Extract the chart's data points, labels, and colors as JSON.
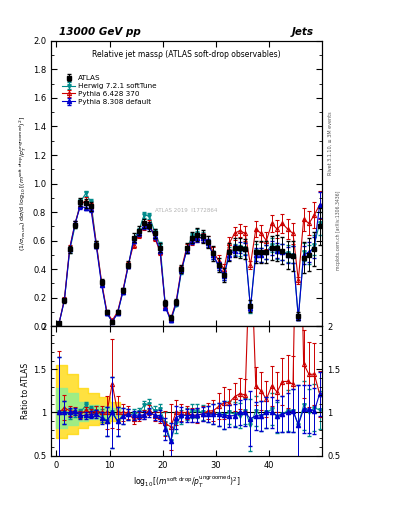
{
  "title_top": "13000 GeV pp",
  "title_right": "Jets",
  "plot_title": "Relative jet massρ (ATLAS soft-drop observables)",
  "watermark": "ATLAS 2019  I1772864",
  "rivet_label": "Rivet 3.1.10, ≥ 3M events",
  "arxiv_label": "mcplots.cern.ch [arXiv:1306.3436]",
  "ylabel_main": "(1/σₙₑˢᵤₘ) dσ/d log₁₀[(mˢᵒᶠᵗ ᵈʳᵒᵖ/pᵀᵘⁿᵏʳᵒᵒᵐᵉᵈ)^2]",
  "ylabel_ratio": "Ratio to ATLAS",
  "xlabel": "log₁₀[(mˢᵒᶠᵗ ᵈʳᵒᵖ/pᵀᵘⁿᵏʳᵒᵒᵐᵉᵈ)²]",
  "xmin": -1,
  "xmax": 50,
  "xticks": [
    0,
    10,
    20,
    30,
    40
  ],
  "ymin_main": 0.0,
  "ymax_main": 2.0,
  "yticks_main": [
    0,
    0.2,
    0.4,
    0.6,
    0.8,
    1.0,
    1.2,
    1.4,
    1.6,
    1.8,
    2.0
  ],
  "ymin_ratio": 0.5,
  "ymax_ratio": 2.0,
  "yticks_ratio": [
    0.5,
    1.0,
    1.5,
    2.0
  ],
  "colors": {
    "atlas": "#000000",
    "herwig": "#008B8B",
    "pythia6": "#CC0000",
    "pythia8": "#0000CC"
  },
  "x": [
    0.5,
    1.5,
    2.5,
    3.5,
    4.5,
    5.5,
    6.5,
    7.5,
    8.5,
    9.5,
    10.5,
    11.5,
    12.5,
    13.5,
    14.5,
    15.5,
    16.5,
    17.5,
    18.5,
    19.5,
    20.5,
    21.5,
    22.5,
    23.5,
    24.5,
    25.5,
    26.5,
    27.5,
    28.5,
    29.5,
    30.5,
    31.5,
    32.5,
    33.5,
    34.5,
    35.5,
    36.5,
    37.5,
    38.5,
    39.5,
    40.5,
    41.5,
    42.5,
    43.5,
    44.5,
    45.5,
    46.5,
    47.5,
    48.5,
    49.5
  ],
  "y_atlas": [
    0.02,
    0.18,
    0.54,
    0.71,
    0.87,
    0.86,
    0.84,
    0.57,
    0.31,
    0.1,
    0.03,
    0.1,
    0.25,
    0.43,
    0.62,
    0.67,
    0.72,
    0.7,
    0.65,
    0.55,
    0.16,
    0.06,
    0.17,
    0.4,
    0.55,
    0.62,
    0.64,
    0.63,
    0.59,
    0.51,
    0.43,
    0.36,
    0.52,
    0.55,
    0.55,
    0.54,
    0.14,
    0.52,
    0.52,
    0.52,
    0.55,
    0.55,
    0.53,
    0.5,
    0.49,
    0.07,
    0.48,
    0.5,
    0.54,
    0.7
  ],
  "ye_atlas": [
    0.01,
    0.02,
    0.025,
    0.025,
    0.03,
    0.03,
    0.03,
    0.025,
    0.02,
    0.015,
    0.01,
    0.015,
    0.02,
    0.025,
    0.03,
    0.03,
    0.03,
    0.03,
    0.03,
    0.03,
    0.02,
    0.015,
    0.02,
    0.03,
    0.035,
    0.04,
    0.045,
    0.045,
    0.045,
    0.05,
    0.05,
    0.05,
    0.06,
    0.065,
    0.07,
    0.07,
    0.04,
    0.075,
    0.08,
    0.08,
    0.085,
    0.09,
    0.095,
    0.1,
    0.105,
    0.03,
    0.11,
    0.115,
    0.12,
    0.13
  ],
  "y_herwig": [
    0.02,
    0.18,
    0.53,
    0.7,
    0.87,
    0.93,
    0.87,
    0.58,
    0.3,
    0.09,
    0.03,
    0.09,
    0.24,
    0.42,
    0.61,
    0.67,
    0.78,
    0.77,
    0.66,
    0.57,
    0.14,
    0.04,
    0.15,
    0.38,
    0.54,
    0.63,
    0.65,
    0.63,
    0.58,
    0.5,
    0.42,
    0.35,
    0.52,
    0.54,
    0.53,
    0.55,
    0.12,
    0.53,
    0.5,
    0.52,
    0.57,
    0.52,
    0.52,
    0.51,
    0.5,
    0.06,
    0.52,
    0.5,
    0.57,
    0.72
  ],
  "ye_herwig": [
    0.008,
    0.012,
    0.015,
    0.015,
    0.018,
    0.018,
    0.018,
    0.015,
    0.012,
    0.01,
    0.007,
    0.01,
    0.012,
    0.015,
    0.018,
    0.018,
    0.02,
    0.02,
    0.018,
    0.018,
    0.012,
    0.008,
    0.012,
    0.018,
    0.02,
    0.025,
    0.028,
    0.028,
    0.028,
    0.03,
    0.03,
    0.03,
    0.035,
    0.038,
    0.04,
    0.042,
    0.025,
    0.045,
    0.048,
    0.048,
    0.05,
    0.052,
    0.055,
    0.058,
    0.06,
    0.02,
    0.065,
    0.068,
    0.072,
    0.08
  ],
  "y_pythia6": [
    0.02,
    0.19,
    0.55,
    0.72,
    0.85,
    0.88,
    0.84,
    0.58,
    0.31,
    0.1,
    0.04,
    0.1,
    0.25,
    0.43,
    0.57,
    0.64,
    0.7,
    0.72,
    0.62,
    0.52,
    0.14,
    0.05,
    0.17,
    0.4,
    0.55,
    0.6,
    0.62,
    0.62,
    0.6,
    0.52,
    0.46,
    0.4,
    0.58,
    0.65,
    0.67,
    0.65,
    0.43,
    0.68,
    0.65,
    0.6,
    0.72,
    0.68,
    0.72,
    0.68,
    0.65,
    0.32,
    0.75,
    0.72,
    0.78,
    0.85
  ],
  "ye_pythia6": [
    0.01,
    0.015,
    0.018,
    0.018,
    0.022,
    0.022,
    0.022,
    0.018,
    0.015,
    0.012,
    0.008,
    0.012,
    0.015,
    0.018,
    0.022,
    0.022,
    0.024,
    0.024,
    0.022,
    0.022,
    0.015,
    0.01,
    0.015,
    0.022,
    0.025,
    0.03,
    0.033,
    0.033,
    0.033,
    0.036,
    0.036,
    0.036,
    0.042,
    0.046,
    0.048,
    0.05,
    0.03,
    0.055,
    0.058,
    0.058,
    0.062,
    0.065,
    0.068,
    0.072,
    0.075,
    0.025,
    0.08,
    0.084,
    0.09,
    0.1
  ],
  "y_pythia8": [
    0.02,
    0.18,
    0.54,
    0.72,
    0.84,
    0.83,
    0.82,
    0.56,
    0.29,
    0.09,
    0.03,
    0.09,
    0.24,
    0.42,
    0.6,
    0.65,
    0.7,
    0.7,
    0.63,
    0.53,
    0.13,
    0.04,
    0.16,
    0.39,
    0.53,
    0.6,
    0.62,
    0.62,
    0.58,
    0.5,
    0.42,
    0.35,
    0.5,
    0.53,
    0.55,
    0.54,
    0.13,
    0.5,
    0.5,
    0.52,
    0.55,
    0.53,
    0.52,
    0.5,
    0.5,
    0.06,
    0.5,
    0.52,
    0.55,
    0.85
  ],
  "ye_pythia8": [
    0.008,
    0.012,
    0.015,
    0.015,
    0.018,
    0.018,
    0.018,
    0.015,
    0.012,
    0.01,
    0.007,
    0.01,
    0.012,
    0.015,
    0.018,
    0.018,
    0.02,
    0.02,
    0.018,
    0.018,
    0.012,
    0.008,
    0.012,
    0.018,
    0.02,
    0.025,
    0.028,
    0.028,
    0.028,
    0.03,
    0.03,
    0.03,
    0.035,
    0.038,
    0.04,
    0.042,
    0.025,
    0.045,
    0.048,
    0.048,
    0.05,
    0.052,
    0.055,
    0.058,
    0.06,
    0.02,
    0.065,
    0.068,
    0.072,
    0.09
  ],
  "band_yellow_x": [
    0,
    2,
    4,
    6,
    8,
    10,
    12
  ],
  "band_yellow_lo": [
    0.7,
    0.75,
    0.82,
    0.85,
    0.88,
    0.9,
    0.93
  ],
  "band_yellow_hi": [
    1.55,
    1.45,
    1.28,
    1.22,
    1.18,
    1.12,
    1.08
  ],
  "band_green_x": [
    0,
    2,
    4,
    6,
    8,
    10,
    12
  ],
  "band_green_lo": [
    0.82,
    0.85,
    0.9,
    0.92,
    0.94,
    0.96,
    0.97
  ],
  "band_green_hi": [
    1.28,
    1.22,
    1.12,
    1.09,
    1.07,
    1.05,
    1.04
  ]
}
